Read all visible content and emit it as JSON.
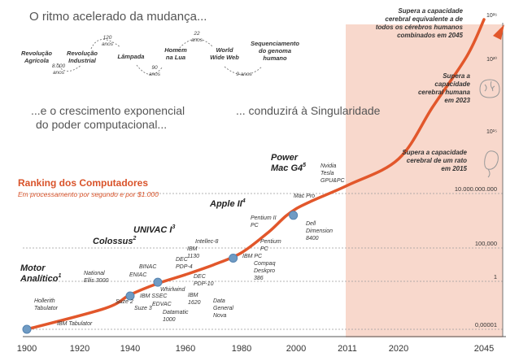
{
  "header": {
    "line1": "O ritmo acelerado da mudança...",
    "line2a": "...e o crescimento exponencial",
    "line2b": "do poder computacional...",
    "line3": "... conduzirá à Singularidade"
  },
  "timeline": {
    "events": [
      {
        "id": "rev-agricola",
        "lines": [
          "Revolução",
          "Agrícola"
        ]
      },
      {
        "id": "rev-industrial",
        "lines": [
          "Revolução",
          "Industrial"
        ]
      },
      {
        "id": "lampada",
        "lines": [
          "Lâmpada"
        ]
      },
      {
        "id": "homem-lua",
        "lines": [
          "Homem",
          "na Lua"
        ]
      },
      {
        "id": "www",
        "lines": [
          "World",
          "Wide Web"
        ]
      },
      {
        "id": "genoma",
        "lines": [
          "Sequenciamento",
          "do genoma",
          "humano"
        ]
      }
    ],
    "intervals": [
      {
        "id": "i-8000",
        "lines": [
          "8.000",
          "anos"
        ]
      },
      {
        "id": "i-120",
        "lines": [
          "120",
          "anos"
        ]
      },
      {
        "id": "i-90",
        "lines": [
          "90",
          "anos"
        ]
      },
      {
        "id": "i-22",
        "lines": [
          "22",
          "anos"
        ]
      },
      {
        "id": "i-9",
        "lines": [
          "9 anos"
        ]
      }
    ]
  },
  "ranking": {
    "title": "Ranking dos Computadores",
    "subtitle": "Em processamento por segundo  e por $1.000"
  },
  "colors": {
    "curve": "#e2572b",
    "future_band": "#f8d8cc",
    "ranking_title": "#d9532a",
    "grid": "#9a9a9a",
    "node": "#6f9bc4",
    "text": "#333333",
    "header_text": "#555555"
  },
  "icons": {
    "brain_icon": "brain-outline-icon",
    "mouse_brain_icon": "mouse-brain-outline-icon"
  },
  "chart_data": {
    "type": "line",
    "x_ticks": [
      "1900",
      "1920",
      "1940",
      "1960",
      "1980",
      "2000",
      "2011",
      "2020",
      "2045"
    ],
    "y_ticks": [
      "0,00001",
      "1",
      "100,000",
      "10.000.000.000",
      "10¹⁵",
      "10²⁰",
      "10²⁶"
    ],
    "y_scale": "log",
    "shaded_region": {
      "from": 2011,
      "to": 2045
    },
    "series": [
      {
        "points": [
          {
            "x": 1900,
            "y": 1e-05
          },
          {
            "x": 1930,
            "y": 0.0015
          },
          {
            "x": 1940,
            "y": 0.04
          },
          {
            "x": 1950,
            "y": 0.6
          },
          {
            "x": 1960,
            "y": 10
          },
          {
            "x": 1970,
            "y": 300
          },
          {
            "x": 1980,
            "y": 20000
          },
          {
            "x": 1990,
            "y": 3000000
          },
          {
            "x": 2000,
            "y": 400000000
          },
          {
            "x": 2011,
            "y": 50000000000
          },
          {
            "x": 2020,
            "y": 10000000000000.0
          },
          {
            "x": 2030,
            "y": 1e+17
          },
          {
            "x": 2040,
            "y": 1e+21
          },
          {
            "x": 2045,
            "y": 1e+26
          }
        ]
      }
    ],
    "milestones": [
      {
        "id": "motor-analitico",
        "label": "Motor Analítico",
        "sup": "1",
        "x": 1900,
        "y": 1e-05
      },
      {
        "id": "colossus",
        "label": "Colossus",
        "sup": "2",
        "x": 1940,
        "y": 0.03
      },
      {
        "id": "univac",
        "label": "UNIVAC I",
        "sup": "3",
        "x": 1950,
        "y": 0.8
      },
      {
        "id": "apple-ii",
        "label": "Apple II",
        "sup": "4",
        "x": 1977,
        "y": 3000
      },
      {
        "id": "power-mac",
        "label": "Power Mac G4",
        "sup": "5",
        "x": 1999,
        "y": 100000000
      }
    ],
    "machines": [
      {
        "id": "hollerith",
        "lines": [
          "Hollerith",
          "Tabulator"
        ]
      },
      {
        "id": "ibm-tab",
        "lines": [
          "IBM Tabulator"
        ]
      },
      {
        "id": "national",
        "lines": [
          "National",
          "Ellis 3000"
        ]
      },
      {
        "id": "suze2",
        "lines": [
          "Suze 2"
        ]
      },
      {
        "id": "suze3",
        "lines": [
          "Suze 3"
        ]
      },
      {
        "id": "binac",
        "lines": [
          "BINAC"
        ]
      },
      {
        "id": "eniac",
        "lines": [
          "ENIAC"
        ]
      },
      {
        "id": "ibm-ssec",
        "lines": [
          "IBM SSEC"
        ]
      },
      {
        "id": "edvac",
        "lines": [
          "EDVAC"
        ]
      },
      {
        "id": "whirlwind",
        "lines": [
          "Whirlwind"
        ]
      },
      {
        "id": "datamatic",
        "lines": [
          "Datamatic",
          "1000"
        ]
      },
      {
        "id": "ibm1620",
        "lines": [
          "IBM",
          "1620"
        ]
      },
      {
        "id": "dec-pdp4",
        "lines": [
          "DEC",
          "PDP-4"
        ]
      },
      {
        "id": "dec-pdp10",
        "lines": [
          "DEC",
          "PDP-10"
        ]
      },
      {
        "id": "ibm1130",
        "lines": [
          "IBM",
          "1130"
        ]
      },
      {
        "id": "intellec8",
        "lines": [
          "Intellec-8"
        ]
      },
      {
        "id": "data-general",
        "lines": [
          "Data",
          "General",
          "Nova"
        ]
      },
      {
        "id": "ibm-pc",
        "lines": [
          "IBM PC"
        ]
      },
      {
        "id": "compaq",
        "lines": [
          "Compaq",
          "Deskpro",
          "386"
        ]
      },
      {
        "id": "pentium-pc",
        "lines": [
          "Pentium",
          "PC"
        ]
      },
      {
        "id": "pentium2",
        "lines": [
          "Pentium II",
          "PC"
        ]
      },
      {
        "id": "dell",
        "lines": [
          "Dell",
          "Dimension",
          "8400"
        ]
      },
      {
        "id": "mac-pro",
        "lines": [
          "Mac Pro"
        ]
      },
      {
        "id": "nvidia",
        "lines": [
          "Nvidia",
          "Tesla",
          "GPU&PC"
        ]
      }
    ],
    "annotations": [
      {
        "id": "ann-rato",
        "lines": [
          "Supera a capacidade",
          "cerebral de um rato",
          "em 2015"
        ]
      },
      {
        "id": "ann-humano",
        "lines": [
          "Supera a",
          "capacidade",
          "cerebral humana",
          "em 2023"
        ]
      },
      {
        "id": "ann-todos",
        "lines": [
          "Supera a capacidade",
          "cerebral equivalente a de",
          "todos os cérebros humanos",
          "combinados em 2045"
        ]
      }
    ]
  }
}
